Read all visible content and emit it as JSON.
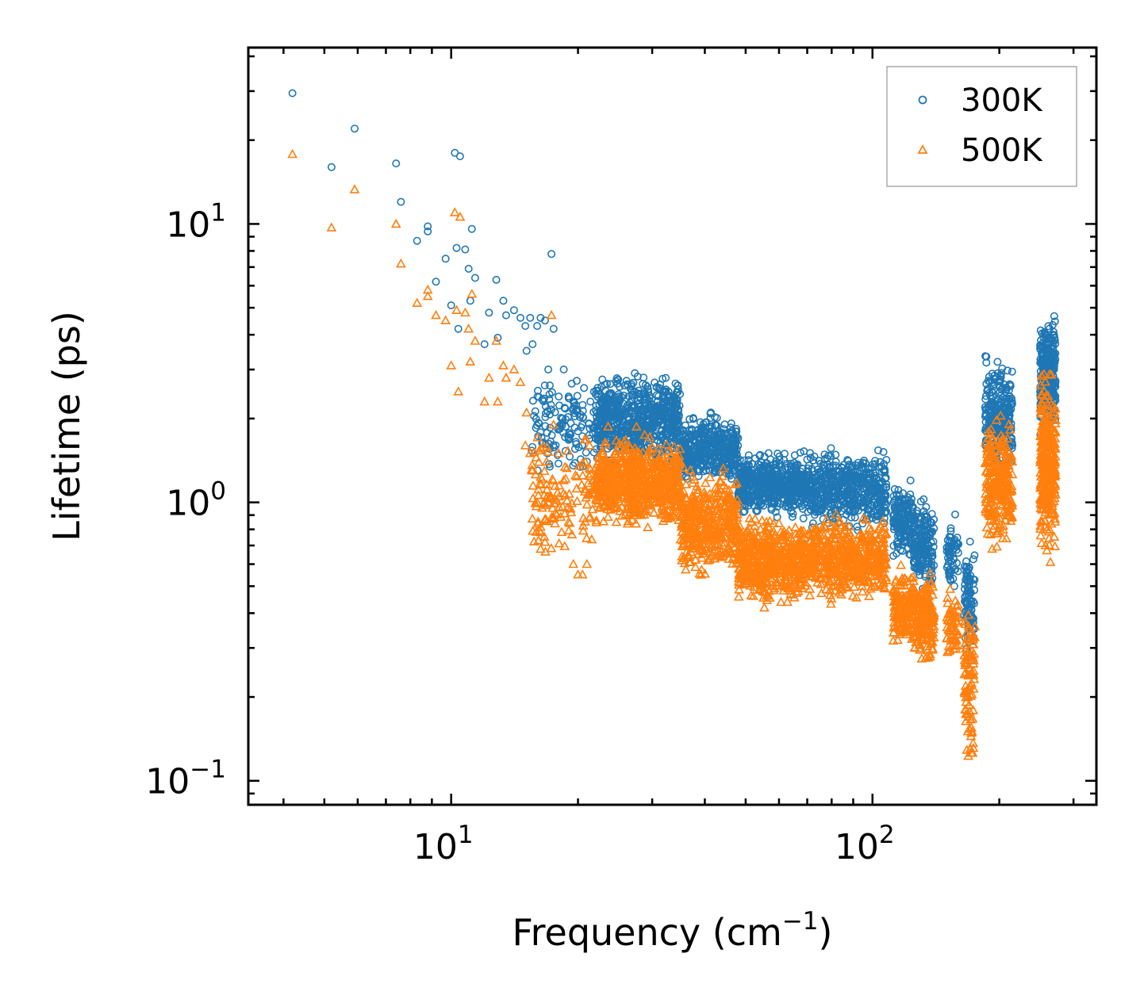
{
  "chart_data": {
    "type": "scatter",
    "xscale": "log",
    "yscale": "log",
    "xlim": [
      3.3,
      340
    ],
    "ylim": [
      0.082,
      43
    ],
    "xlabel": {
      "base": "Frequency (cm",
      "sup": "−1",
      "tail": ")"
    },
    "ylabel": "Lifetime (ps)",
    "x_ticks": [
      {
        "value": 10,
        "base": "10",
        "exp": "1"
      },
      {
        "value": 100,
        "base": "10",
        "exp": "2"
      }
    ],
    "y_ticks": [
      {
        "value": 0.1,
        "base": "10",
        "exp": "−1"
      },
      {
        "value": 1,
        "base": "10",
        "exp": "0"
      },
      {
        "value": 10,
        "base": "10",
        "exp": "1"
      }
    ],
    "legend_position": "top-right",
    "series": [
      {
        "name": "300K",
        "color": "#1f77b4",
        "marker": "circle",
        "points": [
          [
            4.2,
            29.5
          ],
          [
            5.2,
            16.0
          ],
          [
            5.9,
            22.0
          ],
          [
            7.4,
            16.5
          ],
          [
            7.6,
            12.0
          ],
          [
            8.3,
            8.7
          ],
          [
            8.8,
            9.8
          ],
          [
            8.8,
            9.4
          ],
          [
            9.2,
            6.2
          ],
          [
            9.7,
            7.5
          ],
          [
            10.0,
            5.1
          ],
          [
            10.2,
            18.0
          ],
          [
            10.3,
            8.2
          ],
          [
            10.4,
            4.2
          ],
          [
            10.5,
            17.5
          ],
          [
            10.8,
            8.1
          ],
          [
            11.0,
            6.9
          ],
          [
            11.1,
            5.3
          ],
          [
            11.2,
            9.6
          ],
          [
            11.4,
            6.4
          ],
          [
            12.0,
            3.7
          ],
          [
            12.3,
            4.8
          ],
          [
            12.8,
            6.3
          ],
          [
            12.9,
            3.9
          ],
          [
            13.3,
            5.3
          ],
          [
            13.5,
            4.7
          ],
          [
            14.1,
            4.9
          ],
          [
            14.6,
            4.6
          ],
          [
            15.0,
            4.3
          ],
          [
            15.1,
            3.5
          ],
          [
            15.4,
            4.6
          ],
          [
            15.6,
            3.7
          ],
          [
            16.0,
            4.3
          ],
          [
            16.3,
            4.6
          ],
          [
            16.7,
            4.5
          ],
          [
            17.0,
            3.0
          ],
          [
            17.3,
            7.8
          ],
          [
            17.5,
            4.2
          ],
          [
            18.0,
            2.4
          ],
          [
            18.5,
            3.0
          ],
          [
            19.0,
            2.4
          ],
          [
            19.5,
            2.3
          ],
          [
            20.0,
            1.8
          ],
          [
            20.5,
            1.6
          ],
          [
            21.0,
            1.4
          ]
        ],
        "clusters": [
          {
            "x": [
              15.5,
              22.0
            ],
            "y": [
              1.15,
              3.1
            ],
            "n": 130
          },
          {
            "x": [
              22.0,
              35.0
            ],
            "y": [
              1.25,
              3.1
            ],
            "n": 700
          },
          {
            "x": [
              35.0,
              48.0
            ],
            "y": [
              1.1,
              2.2
            ],
            "n": 420
          },
          {
            "x": [
              48.0,
              68.0
            ],
            "y": [
              0.85,
              1.6
            ],
            "n": 500
          },
          {
            "x": [
              68.0,
              108.0
            ],
            "y": [
              0.75,
              1.65
            ],
            "n": 560
          },
          {
            "x": [
              112.0,
              125.0
            ],
            "y": [
              0.55,
              1.3
            ],
            "n": 150
          },
          {
            "x": [
              125.0,
              140.0
            ],
            "y": [
              0.45,
              1.1
            ],
            "n": 180
          },
          {
            "x": [
              150.0,
              160.0
            ],
            "y": [
              0.45,
              0.95
            ],
            "n": 60
          },
          {
            "x": [
              165.0,
              175.0
            ],
            "y": [
              0.22,
              0.85
            ],
            "n": 90
          },
          {
            "x": [
              185.0,
              215.0
            ],
            "y": [
              1.2,
              3.6
            ],
            "n": 260
          },
          {
            "x": [
              250.0,
              272.0
            ],
            "y": [
              1.6,
              5.0
            ],
            "n": 320
          }
        ]
      },
      {
        "name": "500K",
        "color": "#ff7f0e",
        "marker": "triangle",
        "points": [
          [
            4.2,
            17.8
          ],
          [
            5.2,
            9.7
          ],
          [
            5.9,
            13.3
          ],
          [
            7.4,
            10.0
          ],
          [
            7.6,
            7.2
          ],
          [
            8.3,
            5.2
          ],
          [
            8.8,
            5.8
          ],
          [
            8.8,
            5.5
          ],
          [
            9.2,
            4.7
          ],
          [
            9.7,
            4.5
          ],
          [
            10.0,
            3.1
          ],
          [
            10.2,
            11.0
          ],
          [
            10.3,
            4.9
          ],
          [
            10.4,
            2.5
          ],
          [
            10.5,
            10.6
          ],
          [
            10.8,
            4.8
          ],
          [
            11.0,
            4.2
          ],
          [
            11.1,
            3.2
          ],
          [
            11.2,
            5.6
          ],
          [
            11.4,
            3.8
          ],
          [
            12.0,
            2.3
          ],
          [
            12.3,
            2.8
          ],
          [
            12.8,
            3.8
          ],
          [
            12.9,
            2.3
          ],
          [
            13.3,
            3.1
          ],
          [
            13.5,
            2.8
          ],
          [
            14.1,
            3.0
          ],
          [
            14.6,
            2.7
          ],
          [
            15.0,
            1.6
          ],
          [
            15.1,
            2.1
          ],
          [
            15.4,
            1.5
          ],
          [
            15.6,
            1.3
          ],
          [
            16.0,
            1.0
          ],
          [
            16.3,
            0.78
          ],
          [
            16.7,
            0.72
          ],
          [
            17.0,
            1.0
          ],
          [
            17.3,
            4.7
          ],
          [
            17.5,
            1.9
          ],
          [
            18.0,
            1.5
          ],
          [
            18.5,
            1.2
          ],
          [
            19.0,
            0.85
          ],
          [
            19.5,
            0.6
          ],
          [
            20.0,
            0.55
          ],
          [
            20.5,
            0.55
          ],
          [
            21.0,
            0.6
          ]
        ],
        "clusters": [
          {
            "x": [
              15.5,
              22.0
            ],
            "y": [
              0.55,
              1.9
            ],
            "n": 130
          },
          {
            "x": [
              22.0,
              35.0
            ],
            "y": [
              0.75,
              1.9
            ],
            "n": 700
          },
          {
            "x": [
              35.0,
              48.0
            ],
            "y": [
              0.5,
              1.4
            ],
            "n": 420
          },
          {
            "x": [
              48.0,
              68.0
            ],
            "y": [
              0.4,
              0.95
            ],
            "n": 500
          },
          {
            "x": [
              68.0,
              108.0
            ],
            "y": [
              0.42,
              0.95
            ],
            "n": 560
          },
          {
            "x": [
              112.0,
              125.0
            ],
            "y": [
              0.28,
              0.62
            ],
            "n": 150
          },
          {
            "x": [
              125.0,
              140.0
            ],
            "y": [
              0.25,
              0.6
            ],
            "n": 180
          },
          {
            "x": [
              150.0,
              160.0
            ],
            "y": [
              0.25,
              0.55
            ],
            "n": 60
          },
          {
            "x": [
              165.0,
              175.0
            ],
            "y": [
              0.1,
              0.5
            ],
            "n": 90
          },
          {
            "x": [
              185.0,
              215.0
            ],
            "y": [
              0.6,
              2.3
            ],
            "n": 260
          },
          {
            "x": [
              250.0,
              272.0
            ],
            "y": [
              0.55,
              3.5
            ],
            "n": 320
          }
        ]
      }
    ]
  }
}
